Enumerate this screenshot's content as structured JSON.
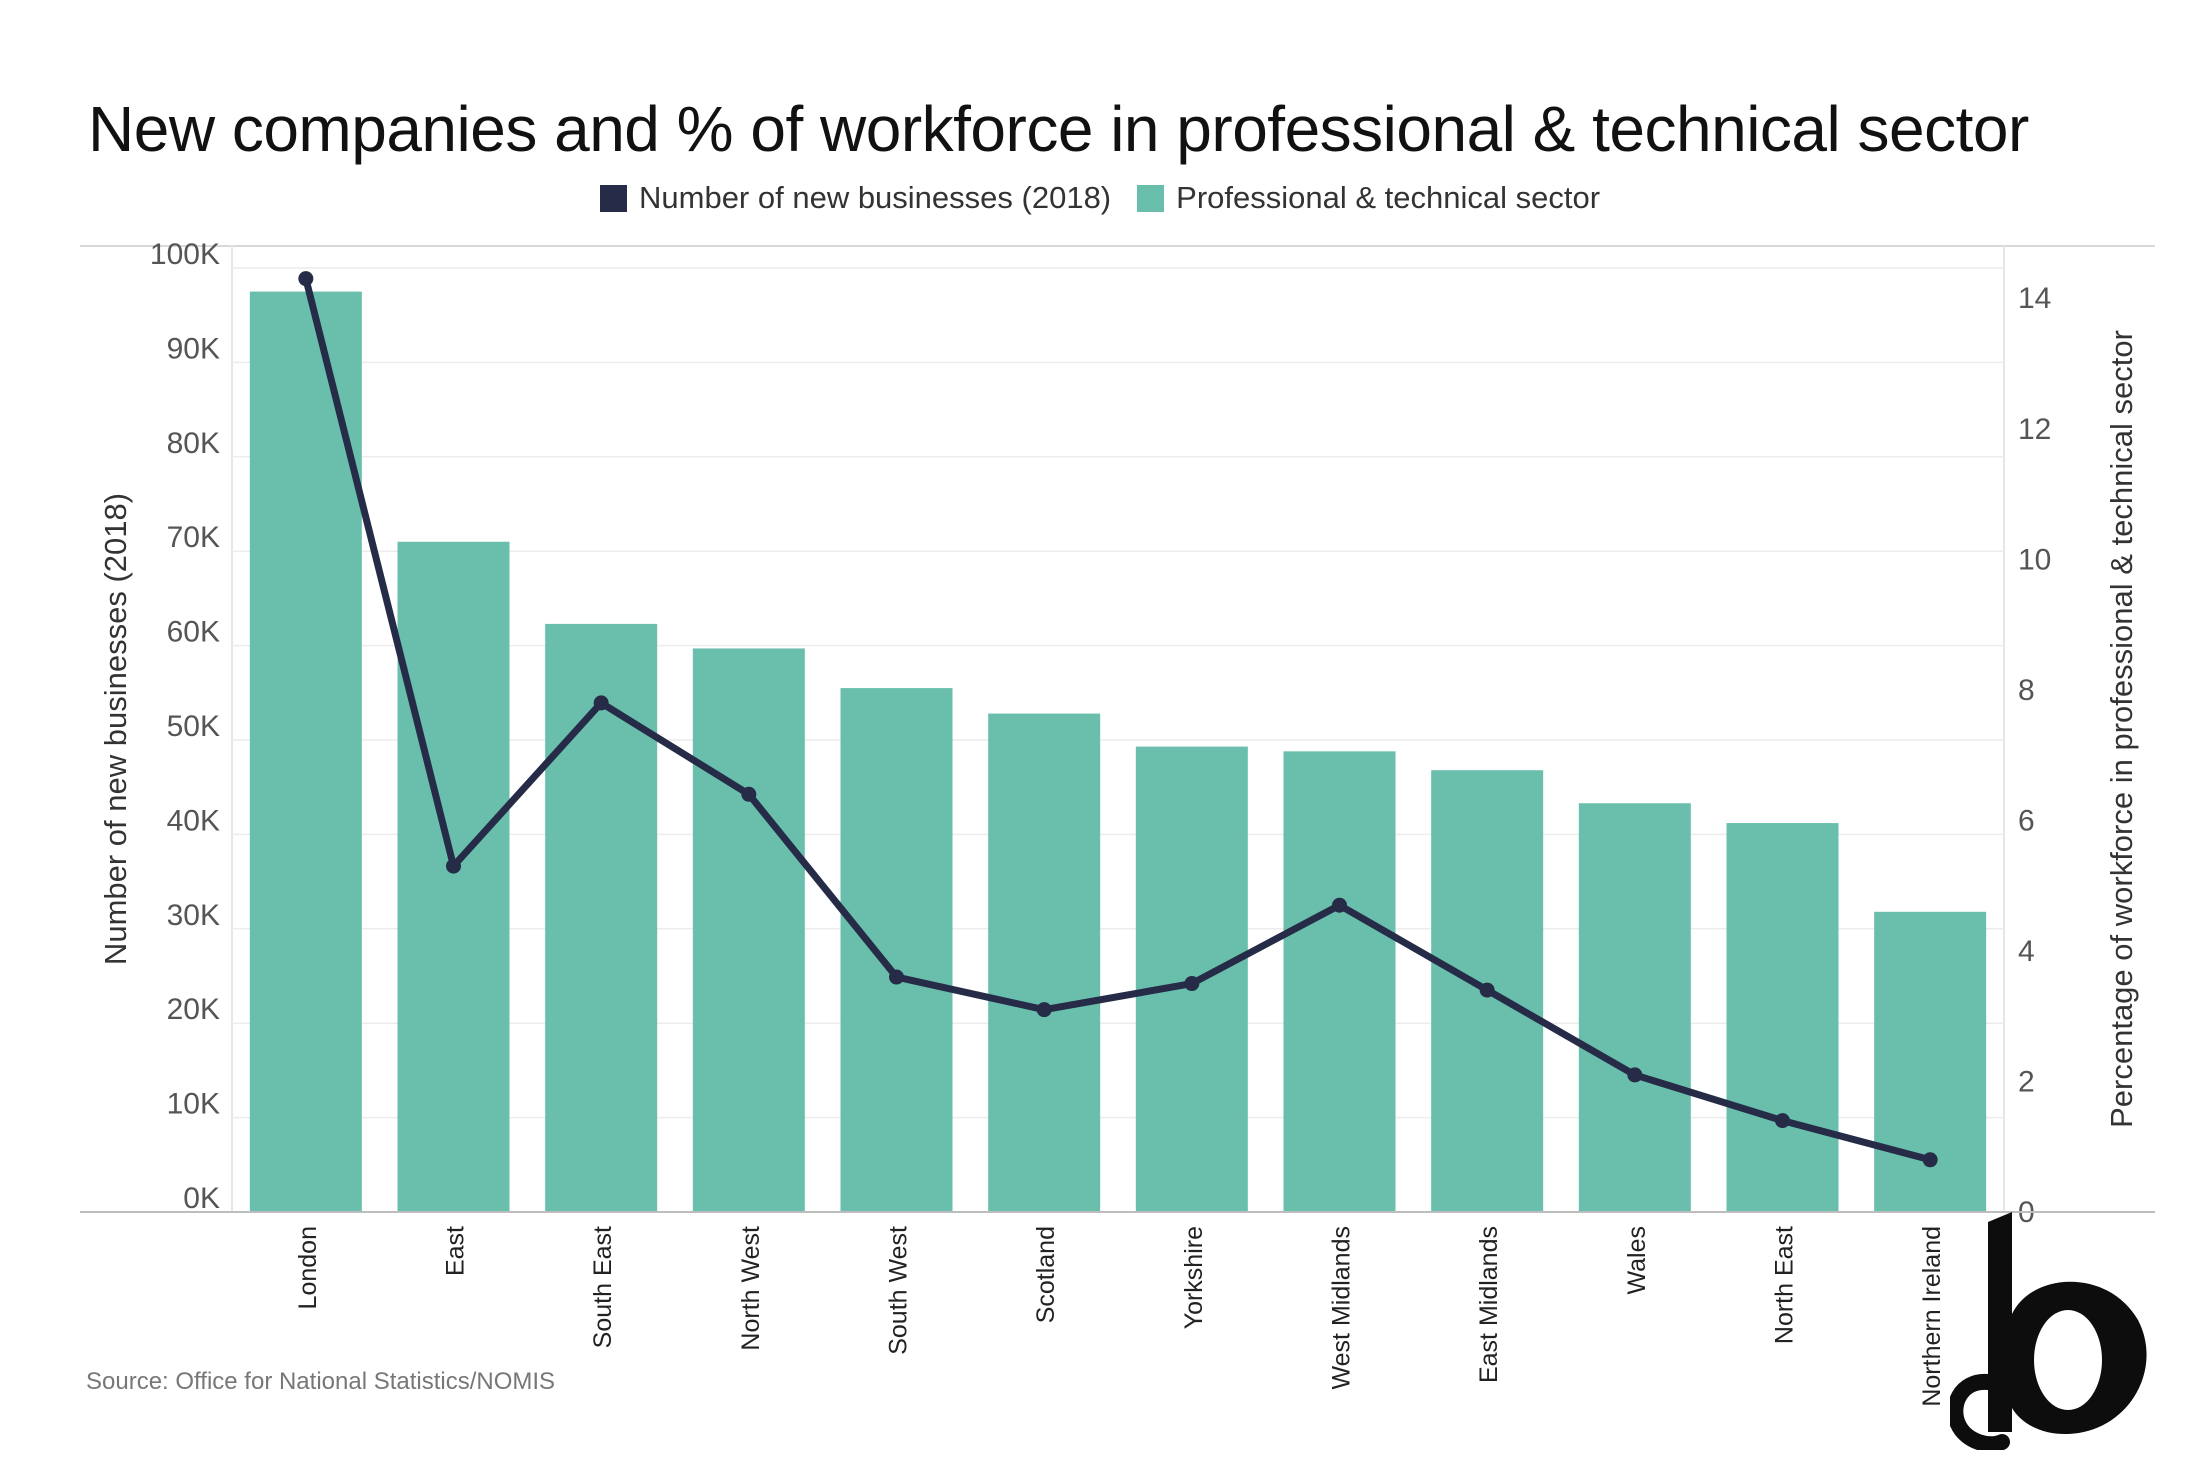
{
  "title": "New companies and % of workforce in professional & technical sector",
  "legend": {
    "line_label": "Number of new businesses (2018)",
    "bar_label": "Professional & technical sector"
  },
  "source": "Source: Office for National Statistics/NOMIS",
  "colors": {
    "bar": "#6abfac",
    "line": "#262b48",
    "grid": "#ececec",
    "axis_text": "#555555"
  },
  "chart_data": {
    "type": "bar",
    "categories": [
      "London",
      "East",
      "South East",
      "North West",
      "South West",
      "Scotland",
      "Yorkshire",
      "West Midlands",
      "East Midlands",
      "Wales",
      "North East",
      "Northern Ireland"
    ],
    "series": [
      {
        "name": "Number of new businesses (2018)",
        "type": "bar",
        "axis": "left",
        "values": [
          97500,
          71000,
          62300,
          59700,
          55500,
          52800,
          49300,
          48800,
          46800,
          43300,
          41200,
          31800
        ]
      },
      {
        "name": "Professional & technical sector",
        "type": "line",
        "axis": "right",
        "values": [
          14.3,
          5.3,
          7.8,
          6.4,
          3.6,
          3.1,
          3.5,
          4.7,
          3.4,
          2.1,
          1.4,
          0.8
        ]
      }
    ],
    "ylabel": "Number of new businesses (2018)",
    "ylabel_right": "Percentage of workforce in professional & technical sector",
    "ylim": [
      0,
      100000
    ],
    "ylim_right": [
      0,
      14.8
    ],
    "yticks": [
      {
        "value": 0,
        "label": "0K"
      },
      {
        "value": 10000,
        "label": "10K"
      },
      {
        "value": 20000,
        "label": "20K"
      },
      {
        "value": 30000,
        "label": "30K"
      },
      {
        "value": 40000,
        "label": "40K"
      },
      {
        "value": 50000,
        "label": "50K"
      },
      {
        "value": 60000,
        "label": "60K"
      },
      {
        "value": 70000,
        "label": "70K"
      },
      {
        "value": 80000,
        "label": "80K"
      },
      {
        "value": 90000,
        "label": "90K"
      },
      {
        "value": 100000,
        "label": "100K"
      }
    ],
    "yticks_right": [
      {
        "value": 0,
        "label": "0"
      },
      {
        "value": 2,
        "label": "2"
      },
      {
        "value": 4,
        "label": "4"
      },
      {
        "value": 6,
        "label": "6"
      },
      {
        "value": 8,
        "label": "8"
      },
      {
        "value": 10,
        "label": "10"
      },
      {
        "value": 12,
        "label": "12"
      },
      {
        "value": 14,
        "label": "14"
      }
    ],
    "grid": true,
    "legend_position": "top"
  }
}
